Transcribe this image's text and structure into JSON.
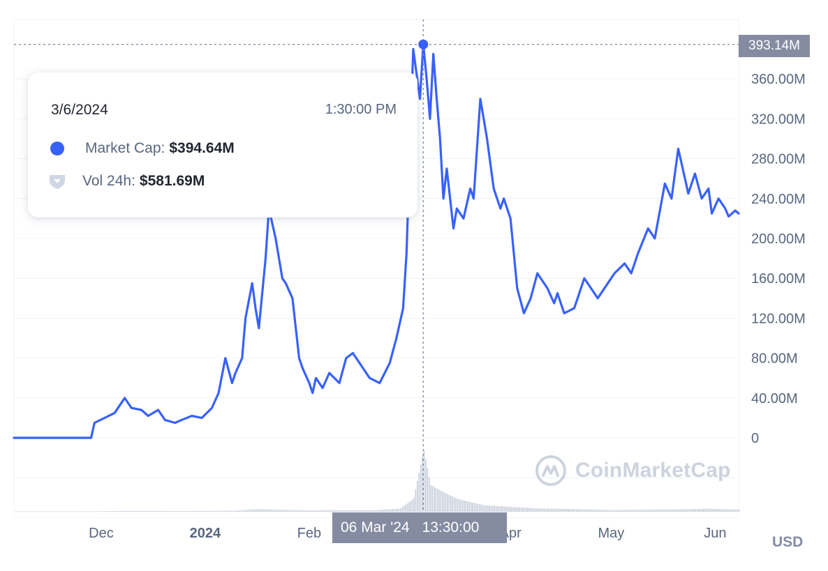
{
  "chart_data": {
    "type": "line",
    "series": [
      {
        "name": "Market Cap",
        "color": "#3861fb",
        "x": [
          "2023-11-05",
          "2023-11-28",
          "2023-11-29",
          "2023-12-02",
          "2023-12-05",
          "2023-12-08",
          "2023-12-10",
          "2023-12-13",
          "2023-12-15",
          "2023-12-18",
          "2023-12-20",
          "2023-12-23",
          "2023-12-25",
          "2023-12-28",
          "2023-12-31",
          "2024-01-03",
          "2024-01-05",
          "2024-01-07",
          "2024-01-09",
          "2024-01-10",
          "2024-01-12",
          "2024-01-13",
          "2024-01-15",
          "2024-01-16",
          "2024-01-17",
          "2024-01-19",
          "2024-01-20",
          "2024-01-22",
          "2024-01-24",
          "2024-01-25",
          "2024-01-27",
          "2024-01-28",
          "2024-01-29",
          "2024-01-30",
          "2024-02-01",
          "2024-02-02",
          "2024-02-03",
          "2024-02-05",
          "2024-02-07",
          "2024-02-10",
          "2024-02-12",
          "2024-02-14",
          "2024-02-17",
          "2024-02-19",
          "2024-02-22",
          "2024-02-25",
          "2024-02-27",
          "2024-02-29",
          "2024-03-01",
          "2024-03-02",
          "2024-03-03",
          "2024-03-05",
          "2024-03-06",
          "2024-03-07",
          "2024-03-08",
          "2024-03-09",
          "2024-03-10",
          "2024-03-11",
          "2024-03-12",
          "2024-03-13",
          "2024-03-15",
          "2024-03-16",
          "2024-03-18",
          "2024-03-20",
          "2024-03-21",
          "2024-03-23",
          "2024-03-25",
          "2024-03-27",
          "2024-03-29",
          "2024-03-30",
          "2024-04-01",
          "2024-04-03",
          "2024-04-05",
          "2024-04-07",
          "2024-04-09",
          "2024-04-12",
          "2024-04-14",
          "2024-04-15",
          "2024-04-17",
          "2024-04-20",
          "2024-04-23",
          "2024-04-25",
          "2024-04-27",
          "2024-04-30",
          "2024-05-02",
          "2024-05-05",
          "2024-05-07",
          "2024-05-09",
          "2024-05-12",
          "2024-05-14",
          "2024-05-17",
          "2024-05-19",
          "2024-05-21",
          "2024-05-24",
          "2024-05-26",
          "2024-05-28",
          "2024-05-30",
          "2024-05-31",
          "2024-06-02",
          "2024-06-04",
          "2024-06-05",
          "2024-06-06",
          "2024-06-07",
          "2024-06-08"
        ],
        "y": [
          0,
          0,
          15,
          20,
          25,
          40,
          30,
          28,
          22,
          28,
          18,
          15,
          18,
          22,
          20,
          30,
          45,
          80,
          55,
          65,
          80,
          120,
          155,
          130,
          110,
          180,
          230,
          200,
          160,
          155,
          140,
          110,
          80,
          70,
          55,
          45,
          60,
          50,
          65,
          55,
          80,
          85,
          70,
          60,
          55,
          75,
          100,
          130,
          185,
          290,
          390,
          340,
          394.6,
          360,
          320,
          385,
          340,
          300,
          240,
          270,
          210,
          230,
          220,
          250,
          240,
          340,
          300,
          250,
          230,
          240,
          220,
          150,
          125,
          140,
          165,
          150,
          135,
          145,
          125,
          130,
          160,
          150,
          140,
          155,
          165,
          175,
          165,
          185,
          210,
          200,
          255,
          240,
          290,
          245,
          265,
          240,
          250,
          225,
          240,
          230,
          222,
          225,
          228,
          225
        ]
      },
      {
        "name": "Vol 24h",
        "color": "#a6b0c3",
        "x": [
          "2023-11-05",
          "2023-11-28",
          "2023-12-10",
          "2023-12-25",
          "2024-01-10",
          "2024-01-17",
          "2024-01-22",
          "2024-02-01",
          "2024-02-10",
          "2024-02-20",
          "2024-02-28",
          "2024-03-03",
          "2024-03-06",
          "2024-03-08",
          "2024-03-12",
          "2024-03-16",
          "2024-03-20",
          "2024-03-24",
          "2024-04-01",
          "2024-04-10",
          "2024-04-20",
          "2024-05-01",
          "2024-05-10",
          "2024-05-20",
          "2024-05-30",
          "2024-06-08"
        ],
        "y": [
          0,
          4,
          8,
          6,
          10,
          25,
          18,
          12,
          15,
          14,
          30,
          120,
          581.7,
          250,
          180,
          120,
          90,
          60,
          45,
          30,
          25,
          15,
          18,
          22,
          28,
          20
        ]
      }
    ],
    "x_tick_labels": [
      "Dec",
      "2024",
      "Feb",
      "Mar",
      "Apr",
      "May",
      "Jun"
    ],
    "y_tick_labels": [
      "0",
      "40.00M",
      "80.00M",
      "120.00M",
      "160.00M",
      "200.00M",
      "240.00M",
      "280.00M",
      "320.00M",
      "360.00M",
      "393.14M"
    ],
    "ylim": [
      0,
      400
    ],
    "y_unit": "USD (millions)",
    "grid": "horizontal",
    "axis_currency": "USD",
    "highlight": {
      "date": "3/6/2024",
      "time": "1:30:00 PM",
      "market_cap_label": "Market Cap:",
      "market_cap_value": "$394.64M",
      "vol_label": "Vol 24h:",
      "vol_value": "$581.69M",
      "x_badge_date": "06 Mar '24",
      "x_badge_time": "13:30:00",
      "y_badge": "393.14M"
    }
  },
  "watermark": "CoinMarketCap",
  "colors": {
    "line": "#3861fb",
    "volume": "#a6b0c3",
    "grid": "#eff2f5",
    "badge": "#858ca2"
  }
}
